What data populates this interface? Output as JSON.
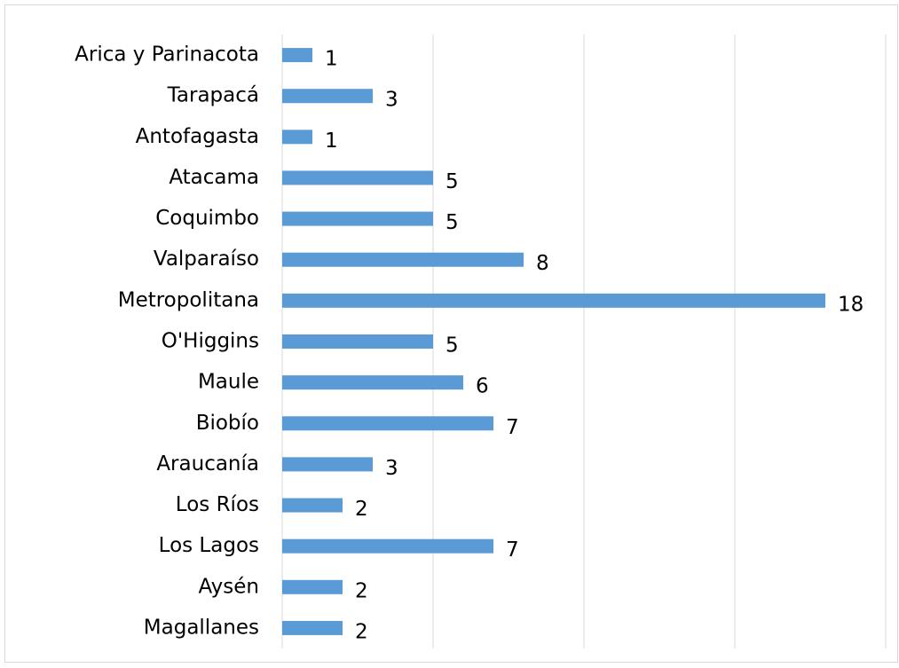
{
  "chart_data": {
    "type": "barh",
    "categories": [
      "Arica y Parinacota",
      "Tarapacá",
      "Antofagasta",
      "Atacama",
      "Coquimbo",
      "Valparaíso",
      "Metropolitana",
      "O'Higgins",
      "Maule",
      "Biobío",
      "Araucanía",
      "Los Ríos",
      "Los Lagos",
      "Aysén",
      "Magallanes"
    ],
    "values": [
      1,
      3,
      1,
      5,
      5,
      8,
      18,
      5,
      6,
      7,
      3,
      2,
      7,
      2,
      2
    ],
    "color": "#5b9bd5",
    "xlim": [
      0,
      20
    ],
    "xticks": [
      0,
      5,
      10,
      15,
      20
    ],
    "grid": true
  }
}
